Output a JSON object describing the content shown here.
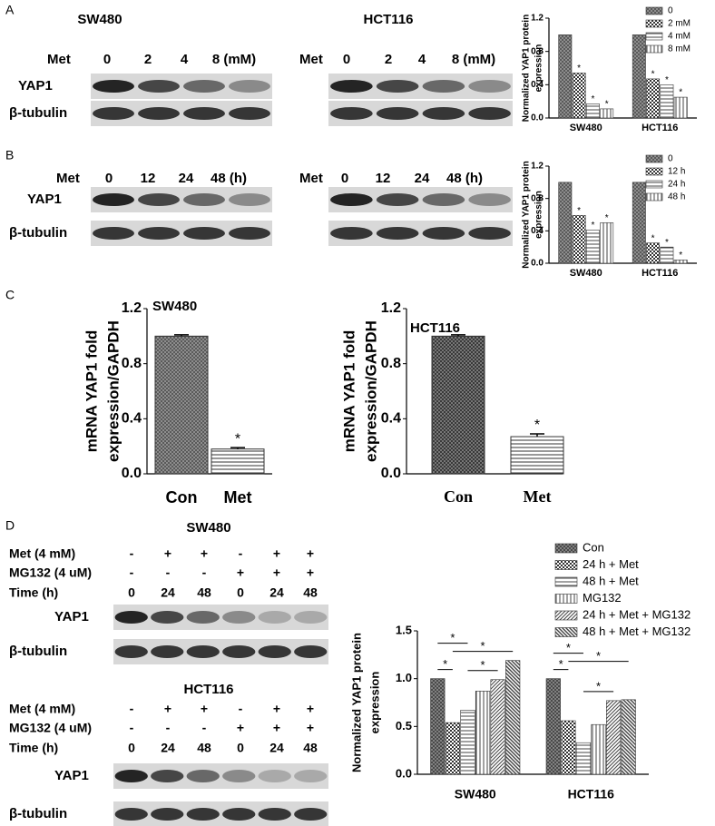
{
  "panel_labels": [
    "A",
    "B",
    "C",
    "D"
  ],
  "blots": [
    {
      "title": "SW480",
      "header_label": "Met",
      "lanes": [
        "0",
        "2",
        "4",
        "8 (mM)"
      ],
      "rows": [
        "YAP1",
        "β-tubulin"
      ]
    },
    {
      "title": "HCT116",
      "header_label": "Met",
      "lanes": [
        "0",
        "2",
        "4",
        "8 (mM)"
      ]
    },
    {
      "header_label": "Met",
      "lanes": [
        "0",
        "12",
        "24",
        "48 (h)"
      ],
      "rows": [
        "YAP1",
        "β-tubulin"
      ]
    },
    {
      "header_label": "Met",
      "lanes": [
        "0",
        "12",
        "24",
        "48 (h)"
      ]
    },
    {
      "title": "SW480",
      "conditions": [
        {
          "label": "Met (4 mM)",
          "marks": [
            "-",
            "+",
            "+",
            "-",
            "+",
            "+"
          ]
        },
        {
          "label": "MG132 (4 uM)",
          "marks": [
            "-",
            "-",
            "-",
            "+",
            "+",
            "+"
          ]
        },
        {
          "label": "Time (h)",
          "marks": [
            "0",
            "24",
            "48",
            "0",
            "24",
            "48"
          ]
        }
      ],
      "rows": [
        "YAP1",
        "β-tubulin"
      ]
    },
    {
      "title": "HCT116",
      "conditions": [
        {
          "label": "Met (4 mM)",
          "marks": [
            "-",
            "+",
            "+",
            "-",
            "+",
            "+"
          ]
        },
        {
          "label": "MG132 (4 uM)",
          "marks": [
            "-",
            "-",
            "-",
            "+",
            "+",
            "+"
          ]
        },
        {
          "label": "Time (h)",
          "marks": [
            "0",
            "24",
            "48",
            "0",
            "24",
            "48"
          ]
        }
      ],
      "rows": [
        "YAP1",
        "β-tubulin"
      ]
    }
  ],
  "chart_data": [
    {
      "type": "grouped_bar",
      "ylabel": [
        "Normalized YAP1 protein",
        "expression"
      ],
      "categories": [
        "SW480",
        "HCT116"
      ],
      "series": [
        {
          "name": "0",
          "color": "#555555",
          "pattern": "crosshatch",
          "values": [
            1.0,
            1.0
          ],
          "annotations": [
            null,
            null
          ]
        },
        {
          "name": "2 mM",
          "color": "#333333",
          "pattern": "checker",
          "values": [
            0.54,
            0.47
          ],
          "annotations": [
            "*",
            "*"
          ]
        },
        {
          "name": "4 mM",
          "color": "#444444",
          "pattern": "hlines",
          "values": [
            0.17,
            0.4
          ],
          "annotations": [
            "*",
            "*"
          ]
        },
        {
          "name": "8 mM",
          "color": "#444444",
          "pattern": "vlines",
          "values": [
            0.11,
            0.25
          ],
          "annotations": [
            "*",
            "*"
          ]
        }
      ],
      "ylim": [
        0,
        1.2
      ],
      "yticks": [
        {
          "value": 0,
          "label": "0.0"
        },
        0.4,
        0.8,
        1.2
      ],
      "legend": "upper right"
    },
    {
      "type": "grouped_bar",
      "ylabel": [
        "Normalized YAP1 protein",
        "expression"
      ],
      "categories": [
        "SW480",
        "HCT116"
      ],
      "series": [
        {
          "name": "0",
          "color": "#555555",
          "pattern": "crosshatch",
          "values": [
            1.0,
            1.0
          ],
          "annotations": [
            null,
            null
          ]
        },
        {
          "name": "12 h",
          "color": "#333333",
          "pattern": "checker",
          "values": [
            0.59,
            0.25
          ],
          "annotations": [
            "*",
            "*"
          ]
        },
        {
          "name": "24 h",
          "color": "#444444",
          "pattern": "hlines",
          "values": [
            0.41,
            0.2
          ],
          "annotations": [
            "*",
            "*"
          ]
        },
        {
          "name": "48 h",
          "color": "#444444",
          "pattern": "vlines",
          "values": [
            0.5,
            0.04
          ],
          "annotations": [
            "*",
            "*"
          ]
        }
      ],
      "ylim": [
        0,
        1.2
      ],
      "yticks": [
        {
          "value": 0,
          "label": "0.0"
        },
        0.4,
        0.8,
        1.2
      ],
      "legend": "upper right"
    },
    {
      "type": "bar",
      "title": "SW480",
      "ylabel": [
        "mRNA YAP1 fold",
        "expression/GAPDH"
      ],
      "categories": [
        "Con",
        "Met"
      ],
      "values": [
        1.0,
        0.18
      ],
      "errors": [
        0.01,
        0.01
      ],
      "annotations": [
        null,
        "*"
      ],
      "colors": [
        "#555555",
        "#333333"
      ],
      "patterns": [
        "crosshatch",
        "hlines"
      ],
      "ylim": [
        0,
        1.2
      ],
      "yticks": [
        {
          "value": 0,
          "label": "0.0"
        },
        0.4,
        0.8,
        1.2
      ]
    },
    {
      "type": "bar",
      "title": "HCT116",
      "ylabel": [
        "mRNA YAP1 fold",
        "expression/GAPDH"
      ],
      "categories": [
        "Con",
        "Met"
      ],
      "values": [
        1.0,
        0.27
      ],
      "errors": [
        0.01,
        0.02
      ],
      "annotations": [
        null,
        "*"
      ],
      "colors": [
        "#333333",
        "#333333"
      ],
      "patterns": [
        "crosshatch",
        "hlines"
      ],
      "ylim": [
        0,
        1.2
      ],
      "yticks": [
        {
          "value": 0,
          "label": "0.0"
        },
        0.4,
        0.8,
        1.2
      ]
    },
    {
      "type": "grouped_bar",
      "ylabel": [
        "Normalized YAP1 protein",
        "expression"
      ],
      "categories": [
        "SW480",
        "HCT116"
      ],
      "series": [
        {
          "name": "Con",
          "color": "#444444",
          "pattern": "crosshatch",
          "values": [
            1.0,
            1.0
          ]
        },
        {
          "name": "24 h + Met",
          "color": "#333333",
          "pattern": "checker",
          "values": [
            0.54,
            0.56
          ]
        },
        {
          "name": "48 h + Met",
          "color": "#444444",
          "pattern": "hlines",
          "values": [
            0.67,
            0.33
          ]
        },
        {
          "name": "MG132",
          "color": "#444444",
          "pattern": "vlines",
          "values": [
            0.87,
            0.52
          ]
        },
        {
          "name": "24 h + Met + MG132",
          "color": "#444444",
          "pattern": "diagonal",
          "values": [
            0.99,
            0.77
          ]
        },
        {
          "name": "48 h + Met + MG132",
          "color": "#444444",
          "pattern": "diagonal2",
          "values": [
            1.19,
            0.78
          ]
        }
      ],
      "comparisons": [
        {
          "category": 0,
          "from": 0,
          "to": 1,
          "label": "*"
        },
        {
          "category": 0,
          "from": 2,
          "to": 4,
          "label": "*"
        },
        {
          "category": 0,
          "from": 1,
          "to": 5,
          "label": "*"
        },
        {
          "category": 0,
          "from": 0,
          "to": 2,
          "label": "*"
        },
        {
          "category": 1,
          "from": 2,
          "to": 4,
          "label": "*"
        },
        {
          "category": 1,
          "from": 0,
          "to": 1,
          "label": "*"
        },
        {
          "category": 1,
          "from": 1,
          "to": 5,
          "label": "*"
        },
        {
          "category": 1,
          "from": 0,
          "to": 2,
          "label": "*"
        }
      ],
      "ylim": [
        0,
        1.5
      ],
      "yticks": [
        {
          "value": 0,
          "label": "0.0"
        },
        0.5,
        {
          "value": 1,
          "label": "1.0"
        },
        1.5
      ],
      "legend": "upper right"
    }
  ]
}
